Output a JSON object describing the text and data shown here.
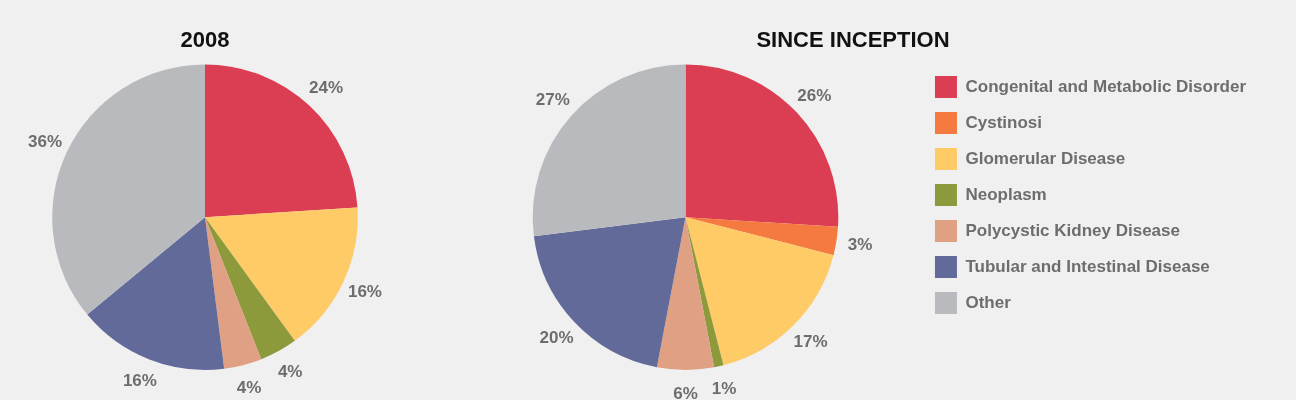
{
  "chart_data": [
    {
      "type": "pie",
      "title": "2008",
      "categories": [
        null,
        null,
        null,
        null,
        null,
        null
      ],
      "values": [
        24,
        16,
        4,
        4,
        16,
        36
      ],
      "colors": [
        "#db3d52",
        "#fecb66",
        "#8c9a3c",
        "#e0a083",
        "#626a9a",
        "#b9babe"
      ],
      "value_labels": [
        "24%",
        "16%",
        "4%",
        "4%",
        "16%",
        "36%"
      ],
      "legend": false
    },
    {
      "type": "pie",
      "title": "SINCE INCEPTION",
      "categories": [
        "Congenital and Metabolic Disorder",
        "Cystinosi",
        "Glomerular Disease",
        "Neoplasm",
        "Polycystic Kidney Disease",
        "Tubular and Intestinal Disease",
        "Other"
      ],
      "values": [
        26,
        3,
        17,
        1,
        6,
        20,
        27
      ],
      "colors": [
        "#db3d52",
        "#f47a3f",
        "#fecb66",
        "#8c9a3c",
        "#e0a083",
        "#626a9a",
        "#b9babe"
      ],
      "value_labels": [
        "26%",
        "3%",
        "17%",
        "1%",
        "6%",
        "20%",
        "27%"
      ],
      "legend": "right"
    }
  ]
}
